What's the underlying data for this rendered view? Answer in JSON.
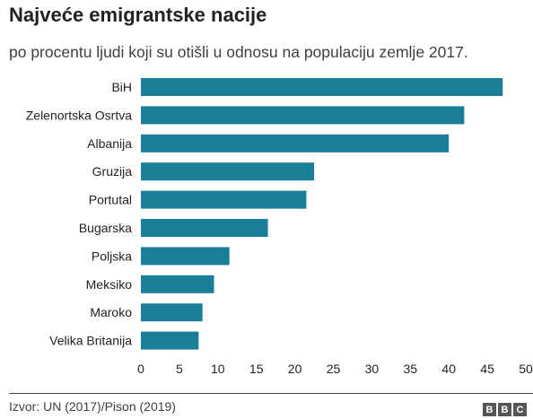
{
  "chart_data": {
    "type": "bar",
    "orientation": "horizontal",
    "title": "Najveće emigrantske nacije",
    "subtitle": "po procentu ljudi koji su otišli u odnosu na populaciju zemlje 2017.",
    "categories": [
      "BiH",
      "Zelenortska Osrtva",
      "Albanija",
      "Gruzija",
      "Portutal",
      "Bugarska",
      "Poljska",
      "Meksiko",
      "Maroko",
      "Velika Britanija"
    ],
    "values": [
      47.0,
      42.0,
      40.0,
      22.5,
      21.5,
      16.5,
      11.5,
      9.5,
      8.0,
      7.5
    ],
    "xlim": [
      0,
      50
    ],
    "xticks": [
      "0",
      "5",
      "10",
      "15",
      "20",
      "25",
      "30",
      "35",
      "40",
      "45",
      "50"
    ],
    "bar_color": "#1a7e98",
    "grid": false
  },
  "footer": {
    "source": "Izvor: UN (2017)/Pison (2019)",
    "logo_letters": [
      "B",
      "B",
      "C"
    ]
  }
}
